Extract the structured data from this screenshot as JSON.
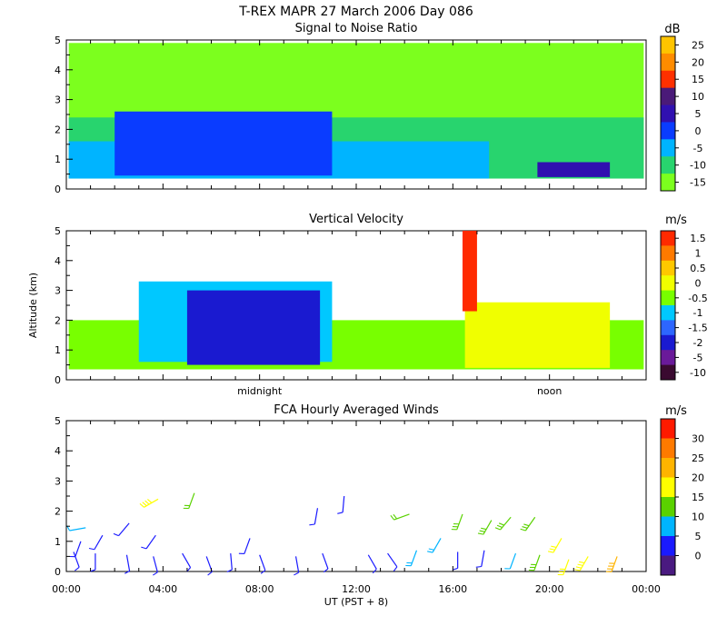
{
  "figure": {
    "title": "T-REX  MAPR 27 March 2006 Day 086",
    "xlabel": "UT  (PST + 8)"
  },
  "chart_data": [
    {
      "type": "heatmap",
      "title": "Signal to Noise Ratio",
      "ylabel": "",
      "unit": "dB",
      "ylim": [
        0,
        5
      ],
      "yticks": [
        "0",
        "1",
        "2",
        "3",
        "4",
        "5"
      ],
      "colorbar": {
        "ticks": [
          "25",
          "20",
          "15",
          "10",
          "5",
          "0",
          "-5",
          "-10",
          "-15"
        ],
        "colors": [
          "#ffc400",
          "#ff8c00",
          "#ff3000",
          "#4a1a78",
          "#3010b0",
          "#0a3cff",
          "#00b4ff",
          "#28d46e",
          "#7cff1e"
        ]
      },
      "bands": [
        {
          "label": "-15",
          "color": "#7cff1e",
          "hour_start": 0.1,
          "hour_end": 23.9,
          "alt_low": 0.35,
          "alt_high": 4.9
        },
        {
          "label": "-10",
          "color": "#28d46e",
          "hour_start": 0.1,
          "hour_end": 23.9,
          "alt_low": 0.35,
          "alt_high": 2.4
        },
        {
          "label": "-5",
          "color": "#00b4ff",
          "hour_start": 0.1,
          "hour_end": 17.5,
          "alt_low": 0.35,
          "alt_high": 1.6
        },
        {
          "label": "0",
          "color": "#0a3cff",
          "hour_start": 2.0,
          "hour_end": 11.0,
          "alt_low": 0.45,
          "alt_high": 2.6
        },
        {
          "label": "5",
          "color": "#3010b0",
          "hour_start": 19.5,
          "hour_end": 22.5,
          "alt_low": 0.4,
          "alt_high": 0.9
        }
      ]
    },
    {
      "type": "heatmap",
      "title": "Vertical Velocity",
      "ylabel": "Altitude (km)",
      "unit": "m/s",
      "ylim": [
        0,
        5
      ],
      "yticks": [
        "0",
        "1",
        "2",
        "3",
        "4",
        "5"
      ],
      "colorbar": {
        "ticks": [
          "1.5",
          "1",
          "0.5",
          "0",
          "-0.5",
          "-1",
          "-1.5",
          "-2",
          "-5",
          "-10"
        ],
        "colors": [
          "#ff2a00",
          "#ff7a00",
          "#ffc800",
          "#f0ff00",
          "#78ff00",
          "#00c8ff",
          "#2d66ff",
          "#1a1ad0",
          "#6a1a9a",
          "#3a0a30"
        ]
      },
      "time_labels": [
        {
          "label": "midnight",
          "hour": 8
        },
        {
          "label": "noon",
          "hour": 20
        }
      ],
      "bands": [
        {
          "label": "-0.5",
          "color": "#78ff00",
          "hour_start": 0.1,
          "hour_end": 23.9,
          "alt_low": 0.35,
          "alt_high": 2.0
        },
        {
          "label": "-1",
          "color": "#00c8ff",
          "hour_start": 3.0,
          "hour_end": 11.0,
          "alt_low": 0.6,
          "alt_high": 3.3
        },
        {
          "label": "0",
          "color": "#f0ff00",
          "hour_start": 16.5,
          "hour_end": 22.5,
          "alt_low": 0.4,
          "alt_high": 2.6
        },
        {
          "label": "-2",
          "color": "#1a1ad0",
          "hour_start": 5.0,
          "hour_end": 10.5,
          "alt_low": 0.5,
          "alt_high": 3.0
        },
        {
          "label": "1.5",
          "color": "#ff2a00",
          "hour_start": 16.4,
          "hour_end": 17.0,
          "alt_low": 2.3,
          "alt_high": 5.0
        }
      ]
    },
    {
      "type": "scatter",
      "title": "FCA Hourly Averaged Winds",
      "ylabel": "",
      "unit": "m/s",
      "xlim": [
        0,
        24
      ],
      "ylim": [
        0,
        5
      ],
      "xticks": [
        "00:00",
        "04:00",
        "08:00",
        "12:00",
        "16:00",
        "20:00",
        "00:00"
      ],
      "yticks": [
        "0",
        "1",
        "2",
        "3",
        "4",
        "5"
      ],
      "colorbar": {
        "ticks": [
          "30",
          "25",
          "20",
          "15",
          "10",
          "5",
          "0"
        ],
        "colors": [
          "#ff1a00",
          "#ff7a00",
          "#ffb400",
          "#ffff00",
          "#5ad200",
          "#00b4ff",
          "#1a1aff",
          "#4a1a80"
        ]
      },
      "barbs": [
        {
          "hour": 0.3,
          "alt": 0.65,
          "dir": 160,
          "speed": 5
        },
        {
          "hour": 0.6,
          "alt": 1.0,
          "dir": 200,
          "speed": 6
        },
        {
          "hour": 0.8,
          "alt": 1.45,
          "dir": 260,
          "speed": 7
        },
        {
          "hour": 1.2,
          "alt": 0.6,
          "dir": 180,
          "speed": 5
        },
        {
          "hour": 1.5,
          "alt": 1.2,
          "dir": 210,
          "speed": 6
        },
        {
          "hour": 2.5,
          "alt": 0.55,
          "dir": 170,
          "speed": 5
        },
        {
          "hour": 2.6,
          "alt": 1.6,
          "dir": 220,
          "speed": 6
        },
        {
          "hour": 3.6,
          "alt": 0.5,
          "dir": 165,
          "speed": 5
        },
        {
          "hour": 3.7,
          "alt": 1.2,
          "dir": 215,
          "speed": 6
        },
        {
          "hour": 3.8,
          "alt": 2.4,
          "dir": 240,
          "speed": 19
        },
        {
          "hour": 4.8,
          "alt": 0.6,
          "dir": 150,
          "speed": 5
        },
        {
          "hour": 5.3,
          "alt": 2.6,
          "dir": 200,
          "speed": 11
        },
        {
          "hour": 5.8,
          "alt": 0.5,
          "dir": 160,
          "speed": 5
        },
        {
          "hour": 6.8,
          "alt": 0.6,
          "dir": 175,
          "speed": 5
        },
        {
          "hour": 7.6,
          "alt": 1.1,
          "dir": 200,
          "speed": 6
        },
        {
          "hour": 8.0,
          "alt": 0.55,
          "dir": 160,
          "speed": 5
        },
        {
          "hour": 9.5,
          "alt": 0.5,
          "dir": 170,
          "speed": 5
        },
        {
          "hour": 10.4,
          "alt": 2.1,
          "dir": 190,
          "speed": 6
        },
        {
          "hour": 10.6,
          "alt": 0.6,
          "dir": 160,
          "speed": 5
        },
        {
          "hour": 11.5,
          "alt": 2.5,
          "dir": 185,
          "speed": 5
        },
        {
          "hour": 12.5,
          "alt": 0.55,
          "dir": 150,
          "speed": 5
        },
        {
          "hour": 13.3,
          "alt": 0.6,
          "dir": 145,
          "speed": 6
        },
        {
          "hour": 14.2,
          "alt": 1.9,
          "dir": 250,
          "speed": 11
        },
        {
          "hour": 14.5,
          "alt": 0.7,
          "dir": 200,
          "speed": 9
        },
        {
          "hour": 15.5,
          "alt": 1.1,
          "dir": 210,
          "speed": 10
        },
        {
          "hour": 16.2,
          "alt": 0.65,
          "dir": 180,
          "speed": 6
        },
        {
          "hour": 16.4,
          "alt": 1.9,
          "dir": 200,
          "speed": 14
        },
        {
          "hour": 17.3,
          "alt": 0.7,
          "dir": 190,
          "speed": 6
        },
        {
          "hour": 17.6,
          "alt": 1.7,
          "dir": 210,
          "speed": 13
        },
        {
          "hour": 18.4,
          "alt": 1.8,
          "dir": 220,
          "speed": 14
        },
        {
          "hour": 18.6,
          "alt": 0.6,
          "dir": 200,
          "speed": 7
        },
        {
          "hour": 19.4,
          "alt": 1.8,
          "dir": 215,
          "speed": 13
        },
        {
          "hour": 19.6,
          "alt": 0.55,
          "dir": 200,
          "speed": 14
        },
        {
          "hour": 20.5,
          "alt": 1.1,
          "dir": 210,
          "speed": 16
        },
        {
          "hour": 20.8,
          "alt": 0.4,
          "dir": 200,
          "speed": 17
        },
        {
          "hour": 21.6,
          "alt": 0.5,
          "dir": 210,
          "speed": 19
        },
        {
          "hour": 22.8,
          "alt": 0.5,
          "dir": 200,
          "speed": 21
        }
      ]
    }
  ]
}
